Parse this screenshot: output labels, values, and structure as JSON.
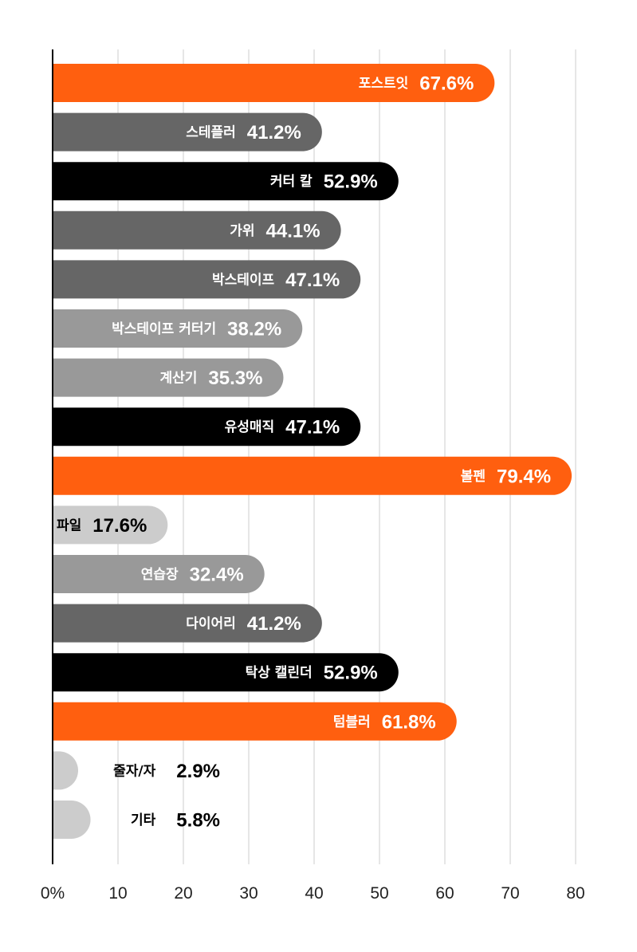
{
  "chart_data": {
    "type": "bar",
    "orientation": "horizontal",
    "title": "",
    "xlabel": "",
    "ylabel": "",
    "xlim": [
      0,
      80
    ],
    "x_ticks": [
      {
        "value": 0,
        "label": "0%"
      },
      {
        "value": 10,
        "label": "10"
      },
      {
        "value": 20,
        "label": "20"
      },
      {
        "value": 30,
        "label": "30"
      },
      {
        "value": 40,
        "label": "40"
      },
      {
        "value": 50,
        "label": "50"
      },
      {
        "value": 60,
        "label": "60"
      },
      {
        "value": 70,
        "label": "70"
      },
      {
        "value": 80,
        "label": "80"
      }
    ],
    "grid": "vertical",
    "legend": "none",
    "bars": [
      {
        "category": "포스트잇",
        "value": 67.6,
        "label": "67.6%",
        "color": "#ff5f0f",
        "text_color": "#ffffff"
      },
      {
        "category": "스테플러",
        "value": 41.2,
        "label": "41.2%",
        "color": "#666666",
        "text_color": "#ffffff"
      },
      {
        "category": "커터 칼",
        "value": 52.9,
        "label": "52.9%",
        "color": "#000000",
        "text_color": "#ffffff"
      },
      {
        "category": "가위",
        "value": 44.1,
        "label": "44.1%",
        "color": "#666666",
        "text_color": "#ffffff"
      },
      {
        "category": "박스테이프",
        "value": 47.1,
        "label": "47.1%",
        "color": "#666666",
        "text_color": "#ffffff"
      },
      {
        "category": "박스테이프 커터기",
        "value": 38.2,
        "label": "38.2%",
        "color": "#999999",
        "text_color": "#ffffff"
      },
      {
        "category": "계산기",
        "value": 35.3,
        "label": "35.3%",
        "color": "#999999",
        "text_color": "#ffffff"
      },
      {
        "category": "유성매직",
        "value": 47.1,
        "label": "47.1%",
        "color": "#000000",
        "text_color": "#ffffff"
      },
      {
        "category": "볼펜",
        "value": 79.4,
        "label": "79.4%",
        "color": "#ff5f0f",
        "text_color": "#ffffff"
      },
      {
        "category": "파일",
        "value": 17.6,
        "label": "17.6%",
        "color": "#cccccc",
        "text_color": "#000000"
      },
      {
        "category": "연습장",
        "value": 32.4,
        "label": "32.4%",
        "color": "#999999",
        "text_color": "#ffffff"
      },
      {
        "category": "다이어리",
        "value": 41.2,
        "label": "41.2%",
        "color": "#666666",
        "text_color": "#ffffff"
      },
      {
        "category": "탁상 캘린더",
        "value": 52.9,
        "label": "52.9%",
        "color": "#000000",
        "text_color": "#ffffff"
      },
      {
        "category": "텀블러",
        "value": 61.8,
        "label": "61.8%",
        "color": "#ff5f0f",
        "text_color": "#ffffff"
      },
      {
        "category": "줄자/자",
        "value": 2.9,
        "label": "2.9%",
        "color": "#cccccc",
        "text_color": "#000000"
      },
      {
        "category": "기타",
        "value": 5.8,
        "label": "5.8%",
        "color": "#cccccc",
        "text_color": "#000000"
      }
    ]
  }
}
